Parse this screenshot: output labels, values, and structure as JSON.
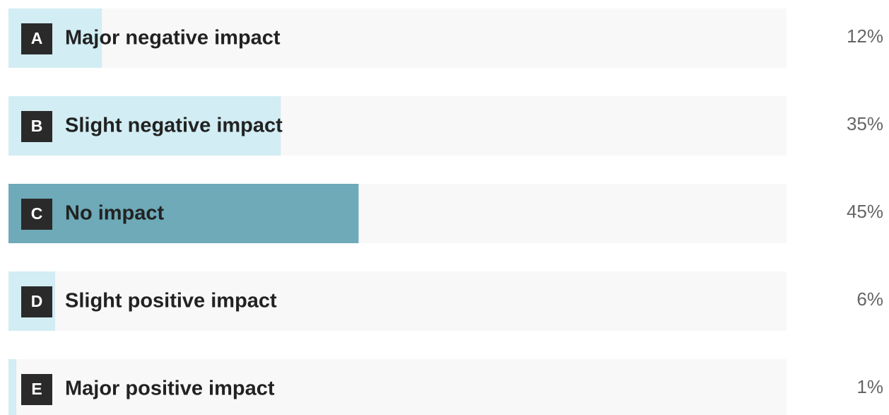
{
  "chart_data": {
    "type": "bar",
    "letters": [
      "A",
      "B",
      "C",
      "D",
      "E"
    ],
    "categories": [
      "Major negative impact",
      "Slight negative impact",
      "No impact",
      "Slight positive impact",
      "Major positive impact"
    ],
    "values": [
      12,
      35,
      45,
      6,
      1
    ],
    "value_labels": [
      "12%",
      "35%",
      "45%",
      "6%",
      "1%"
    ],
    "colors": [
      "#d2edf3",
      "#d2edf3",
      "#6eaab8",
      "#d2edf3",
      "#d2edf3"
    ],
    "track_color": "#f8f8f8",
    "xlim": [
      0,
      100
    ]
  }
}
